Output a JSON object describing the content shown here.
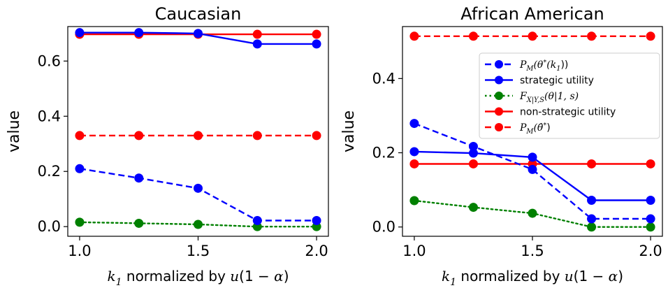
{
  "chart_data": [
    {
      "type": "line",
      "title": "Caucasian",
      "xlabel": "k1 normalized by u(1 − α)",
      "ylabel": "value",
      "xlim": [
        0.95,
        2.05
      ],
      "ylim": [
        -0.035,
        0.725
      ],
      "xticks": [
        "1.0",
        "1.5",
        "2.0"
      ],
      "yticks": [
        "0.0",
        "0.2",
        "0.4",
        "0.6"
      ],
      "grid": false,
      "x": [
        1.0,
        1.25,
        1.5,
        1.75,
        2.0
      ],
      "series": [
        {
          "key": "pm_theta_k1",
          "name": "P_M(θ*(k1))",
          "color": "#0000ff",
          "style": "dashed",
          "values": [
            0.21,
            0.176,
            0.139,
            0.022,
            0.022
          ]
        },
        {
          "key": "strategic_utility",
          "name": "strategic utility",
          "color": "#0000ff",
          "style": "solid",
          "values": [
            0.703,
            0.703,
            0.7,
            0.662,
            0.662
          ]
        },
        {
          "key": "f_cdf",
          "name": "F_X|Y,S(θ|1,s)",
          "color": "#008000",
          "style": "dotted",
          "values": [
            0.016,
            0.012,
            0.008,
            0.0,
            0.0
          ]
        },
        {
          "key": "non_strategic_utility",
          "name": "non-strategic utility",
          "color": "#ff0000",
          "style": "solid",
          "values": [
            0.697,
            0.697,
            0.697,
            0.697,
            0.697
          ]
        },
        {
          "key": "pm_theta_hat",
          "name": "P_M(θ̂*)",
          "color": "#ff0000",
          "style": "dashed",
          "values": [
            0.33,
            0.33,
            0.33,
            0.33,
            0.33
          ]
        }
      ]
    },
    {
      "type": "line",
      "title": "African American",
      "xlabel": "k1 normalized by u(1 − α)",
      "ylabel": "value",
      "xlim": [
        0.95,
        2.05
      ],
      "ylim": [
        -0.025,
        0.54
      ],
      "xticks": [
        "1.0",
        "1.5",
        "2.0"
      ],
      "yticks": [
        "0.0",
        "0.2",
        "0.4"
      ],
      "grid": false,
      "legend": "upper right",
      "x": [
        1.0,
        1.25,
        1.5,
        1.75,
        2.0
      ],
      "series": [
        {
          "key": "pm_theta_k1",
          "name": "P_M(θ*(k1))",
          "color": "#0000ff",
          "style": "dashed",
          "values": [
            0.279,
            0.217,
            0.155,
            0.022,
            0.022
          ]
        },
        {
          "key": "strategic_utility",
          "name": "strategic utility",
          "color": "#0000ff",
          "style": "solid",
          "values": [
            0.203,
            0.199,
            0.188,
            0.072,
            0.072
          ]
        },
        {
          "key": "f_cdf",
          "name": "F_X|Y,S(θ|1,s)",
          "color": "#008000",
          "style": "dotted",
          "values": [
            0.071,
            0.053,
            0.037,
            0.0,
            0.0
          ]
        },
        {
          "key": "non_strategic_utility",
          "name": "non-strategic utility",
          "color": "#ff0000",
          "style": "solid",
          "values": [
            0.17,
            0.17,
            0.17,
            0.17,
            0.17
          ]
        },
        {
          "key": "pm_theta_hat",
          "name": "P_M(θ̂*)",
          "color": "#ff0000",
          "style": "dashed",
          "values": [
            0.514,
            0.514,
            0.514,
            0.514,
            0.514
          ]
        }
      ]
    }
  ]
}
